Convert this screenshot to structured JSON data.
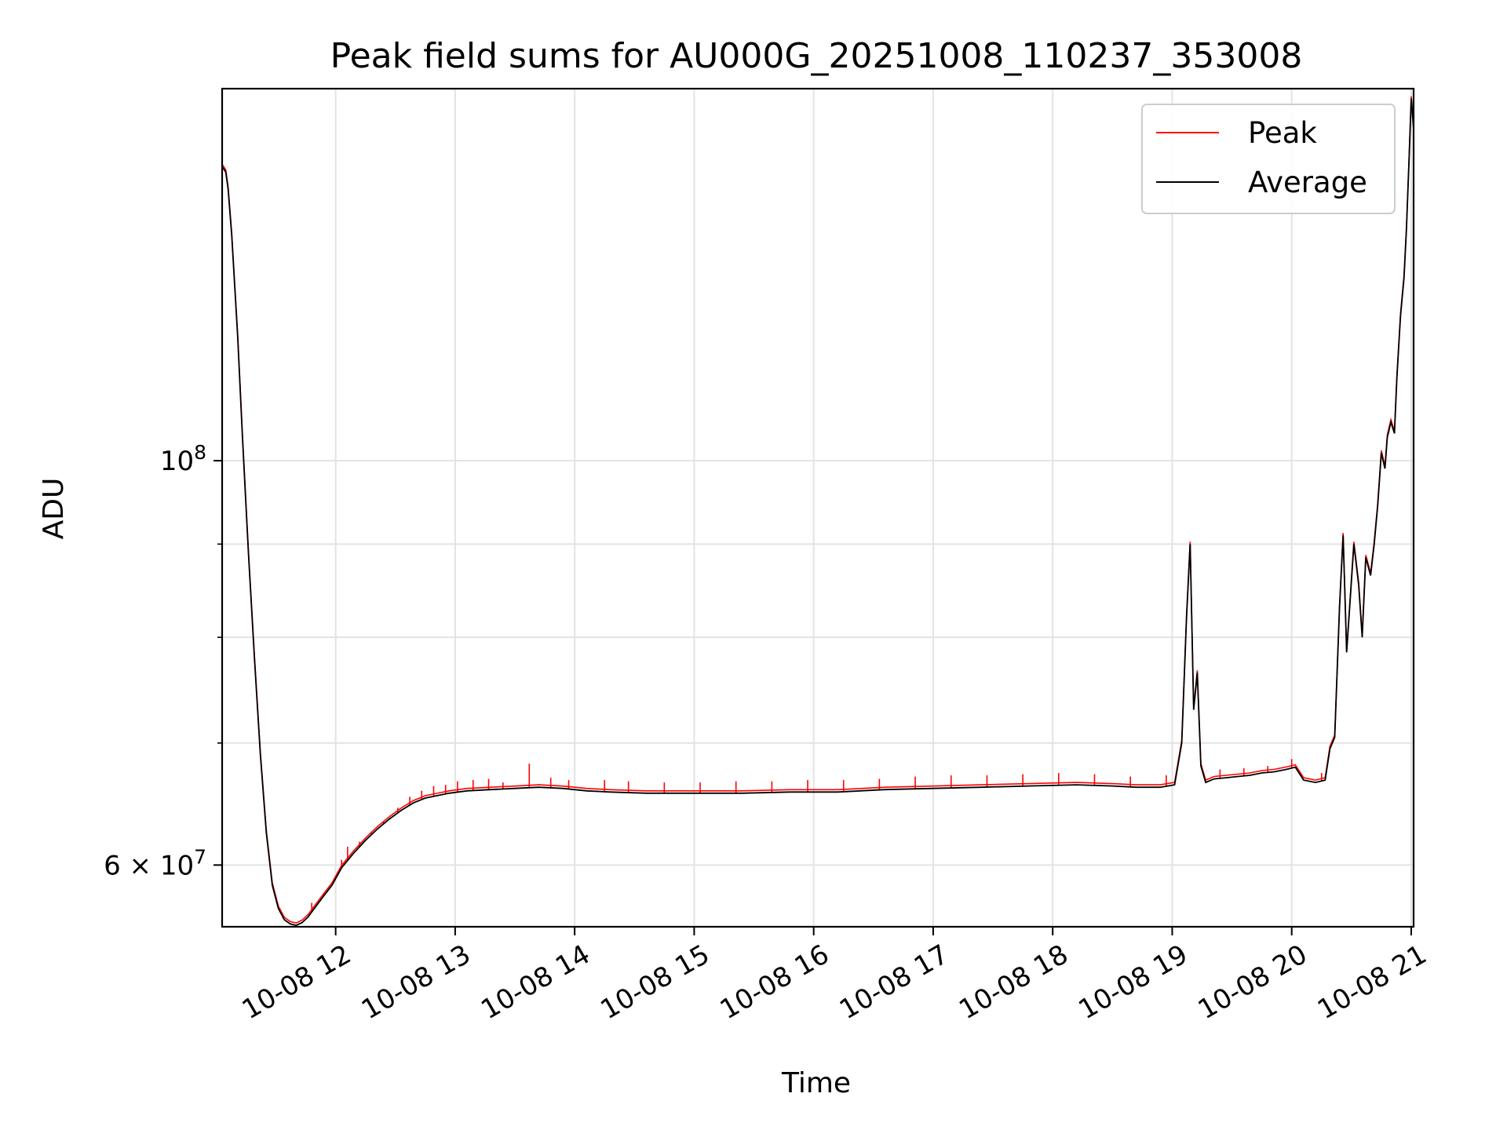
{
  "chart_data": {
    "type": "line",
    "title": "Peak field sums for AU000G_20251008_110237_353008",
    "xlabel": "Time",
    "ylabel": "ADU",
    "y_scale": "log",
    "x_unit": "hours since 2025-10-08 00:00",
    "xlim": [
      11.05,
      21.02
    ],
    "ylim": [
      55500000,
      160000000
    ],
    "x_ticks": [
      {
        "value": 12,
        "label": "10-08 12"
      },
      {
        "value": 13,
        "label": "10-08 13"
      },
      {
        "value": 14,
        "label": "10-08 14"
      },
      {
        "value": 15,
        "label": "10-08 15"
      },
      {
        "value": 16,
        "label": "10-08 16"
      },
      {
        "value": 17,
        "label": "10-08 17"
      },
      {
        "value": 18,
        "label": "10-08 18"
      },
      {
        "value": 19,
        "label": "10-08 19"
      },
      {
        "value": 20,
        "label": "10-08 20"
      },
      {
        "value": 21,
        "label": "10-08 21"
      }
    ],
    "y_major_ticks": [
      {
        "value": 100000000,
        "label_base": "10",
        "label_exp": "8"
      },
      {
        "value": 60000000,
        "label_base": "6 × 10",
        "label_exp": "7"
      }
    ],
    "y_minor_ticks": [
      70000000,
      80000000,
      90000000
    ],
    "grid": true,
    "legend_position": "top-right",
    "series": [
      {
        "name": "Average",
        "color": "#000000",
        "points": [
          [
            11.05,
            145000000
          ],
          [
            11.08,
            144000000
          ],
          [
            11.1,
            141000000
          ],
          [
            11.13,
            133000000
          ],
          [
            11.18,
            117000000
          ],
          [
            11.22,
            103000000
          ],
          [
            11.27,
            89000000
          ],
          [
            11.32,
            78000000
          ],
          [
            11.37,
            69000000
          ],
          [
            11.42,
            62500000
          ],
          [
            11.47,
            58500000
          ],
          [
            11.52,
            56800000
          ],
          [
            11.57,
            56000000
          ],
          [
            11.62,
            55700000
          ],
          [
            11.67,
            55600000
          ],
          [
            11.72,
            55800000
          ],
          [
            11.77,
            56200000
          ],
          [
            11.83,
            56900000
          ],
          [
            11.9,
            57700000
          ],
          [
            11.97,
            58500000
          ],
          [
            12.05,
            59800000
          ],
          [
            12.15,
            60900000
          ],
          [
            12.25,
            61900000
          ],
          [
            12.35,
            62800000
          ],
          [
            12.45,
            63600000
          ],
          [
            12.55,
            64300000
          ],
          [
            12.65,
            64900000
          ],
          [
            12.75,
            65300000
          ],
          [
            12.85,
            65500000
          ],
          [
            12.95,
            65700000
          ],
          [
            13.1,
            65900000
          ],
          [
            13.3,
            66000000
          ],
          [
            13.5,
            66100000
          ],
          [
            13.7,
            66200000
          ],
          [
            13.9,
            66100000
          ],
          [
            14.1,
            65900000
          ],
          [
            14.3,
            65800000
          ],
          [
            14.6,
            65700000
          ],
          [
            15.0,
            65700000
          ],
          [
            15.4,
            65700000
          ],
          [
            15.8,
            65800000
          ],
          [
            16.2,
            65800000
          ],
          [
            16.6,
            66000000
          ],
          [
            17.0,
            66100000
          ],
          [
            17.4,
            66200000
          ],
          [
            17.8,
            66300000
          ],
          [
            18.2,
            66400000
          ],
          [
            18.5,
            66300000
          ],
          [
            18.7,
            66200000
          ],
          [
            18.9,
            66200000
          ],
          [
            19.02,
            66400000
          ],
          [
            19.08,
            70000000
          ],
          [
            19.12,
            82000000
          ],
          [
            19.15,
            90000000
          ],
          [
            19.18,
            73000000
          ],
          [
            19.21,
            76500000
          ],
          [
            19.24,
            68000000
          ],
          [
            19.28,
            66600000
          ],
          [
            19.35,
            66900000
          ],
          [
            19.45,
            67000000
          ],
          [
            19.55,
            67100000
          ],
          [
            19.65,
            67200000
          ],
          [
            19.75,
            67400000
          ],
          [
            19.85,
            67500000
          ],
          [
            19.95,
            67700000
          ],
          [
            20.03,
            67900000
          ],
          [
            20.1,
            66800000
          ],
          [
            20.2,
            66600000
          ],
          [
            20.28,
            66800000
          ],
          [
            20.32,
            69500000
          ],
          [
            20.36,
            70500000
          ],
          [
            20.4,
            83000000
          ],
          [
            20.43,
            91000000
          ],
          [
            20.46,
            78500000
          ],
          [
            20.49,
            84000000
          ],
          [
            20.52,
            90000000
          ],
          [
            20.56,
            85500000
          ],
          [
            20.59,
            80000000
          ],
          [
            20.62,
            88500000
          ],
          [
            20.66,
            86500000
          ],
          [
            20.69,
            90000000
          ],
          [
            20.72,
            94500000
          ],
          [
            20.75,
            101000000
          ],
          [
            20.78,
            99000000
          ],
          [
            20.8,
            103000000
          ],
          [
            20.83,
            105000000
          ],
          [
            20.86,
            103500000
          ],
          [
            20.88,
            111000000
          ],
          [
            20.91,
            120000000
          ],
          [
            20.94,
            126000000
          ],
          [
            20.96,
            134000000
          ],
          [
            20.98,
            145000000
          ],
          [
            21.0,
            158000000
          ],
          [
            21.02,
            152000000
          ]
        ]
      },
      {
        "name": "Peak",
        "color": "#ff0000",
        "spike_points": [
          [
            11.8,
            57200000
          ],
          [
            11.9,
            57900000
          ],
          [
            12.05,
            60400000
          ],
          [
            12.1,
            61400000
          ],
          [
            12.2,
            61800000
          ],
          [
            12.3,
            62600000
          ],
          [
            12.4,
            63400000
          ],
          [
            12.52,
            64500000
          ],
          [
            12.62,
            65400000
          ],
          [
            12.72,
            65900000
          ],
          [
            12.82,
            66300000
          ],
          [
            12.92,
            66400000
          ],
          [
            13.02,
            66700000
          ],
          [
            13.15,
            66800000
          ],
          [
            13.28,
            66900000
          ],
          [
            13.4,
            66600000
          ],
          [
            13.62,
            68200000
          ],
          [
            13.8,
            67000000
          ],
          [
            13.95,
            66800000
          ],
          [
            14.25,
            66800000
          ],
          [
            14.45,
            66700000
          ],
          [
            14.75,
            66600000
          ],
          [
            15.05,
            66600000
          ],
          [
            15.35,
            66700000
          ],
          [
            15.65,
            66700000
          ],
          [
            15.95,
            66800000
          ],
          [
            16.25,
            66800000
          ],
          [
            16.55,
            66900000
          ],
          [
            16.85,
            67100000
          ],
          [
            17.15,
            67200000
          ],
          [
            17.45,
            67200000
          ],
          [
            17.75,
            67300000
          ],
          [
            18.05,
            67400000
          ],
          [
            18.35,
            67300000
          ],
          [
            18.65,
            67100000
          ],
          [
            18.95,
            67200000
          ],
          [
            19.4,
            67700000
          ],
          [
            19.6,
            67800000
          ],
          [
            19.8,
            68000000
          ],
          [
            20.0,
            68600000
          ],
          [
            20.25,
            67400000
          ]
        ]
      }
    ]
  },
  "legend": {
    "peak_label": "Peak",
    "average_label": "Average"
  }
}
